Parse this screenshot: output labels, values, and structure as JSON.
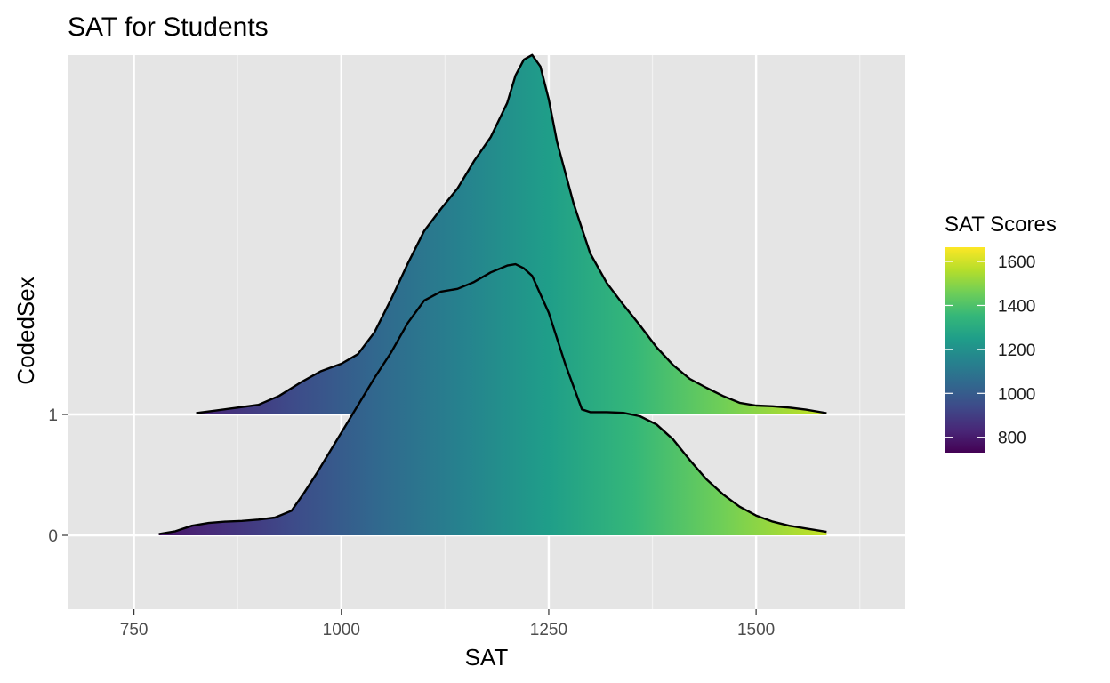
{
  "chart_data": {
    "type": "area",
    "subtype": "ridgeline density",
    "title": "SAT for Students",
    "xlabel": "SAT",
    "ylabel": "CodedSex",
    "xlim": [
      670,
      1680
    ],
    "x_ticks": [
      750,
      1000,
      1250,
      1500
    ],
    "y_categories": [
      "0",
      "1"
    ],
    "grid": true,
    "fill": "viridis gradient by x value",
    "legend": {
      "title": "SAT Scores",
      "position": "right",
      "range": [
        730,
        1665
      ],
      "ticks": [
        800,
        1000,
        1200,
        1400,
        1600
      ]
    },
    "series": [
      {
        "name": "0",
        "x": [
          780,
          800,
          820,
          840,
          860,
          880,
          900,
          920,
          940,
          955,
          970,
          985,
          1000,
          1020,
          1040,
          1060,
          1080,
          1100,
          1120,
          1140,
          1160,
          1180,
          1200,
          1210,
          1220,
          1230,
          1250,
          1270,
          1290,
          1300,
          1320,
          1340,
          1360,
          1380,
          1400,
          1420,
          1440,
          1460,
          1480,
          1500,
          1520,
          1540,
          1560,
          1585
        ],
        "density": [
          0.02,
          0.06,
          0.14,
          0.18,
          0.2,
          0.21,
          0.23,
          0.26,
          0.36,
          0.62,
          0.9,
          1.2,
          1.5,
          1.9,
          2.3,
          2.67,
          3.1,
          3.43,
          3.56,
          3.6,
          3.7,
          3.84,
          3.94,
          3.96,
          3.9,
          3.79,
          3.25,
          2.5,
          1.84,
          1.8,
          1.8,
          1.79,
          1.74,
          1.62,
          1.4,
          1.1,
          0.82,
          0.6,
          0.42,
          0.29,
          0.2,
          0.14,
          0.1,
          0.05
        ]
      },
      {
        "name": "1",
        "x": [
          825,
          850,
          875,
          900,
          925,
          950,
          975,
          1000,
          1020,
          1040,
          1060,
          1080,
          1100,
          1120,
          1140,
          1160,
          1180,
          1200,
          1210,
          1220,
          1230,
          1240,
          1250,
          1260,
          1280,
          1300,
          1320,
          1340,
          1360,
          1380,
          1400,
          1420,
          1440,
          1460,
          1480,
          1500,
          1520,
          1540,
          1560,
          1585
        ],
        "density": [
          0.02,
          0.06,
          0.1,
          0.14,
          0.27,
          0.46,
          0.63,
          0.74,
          0.88,
          1.2,
          1.68,
          2.2,
          2.68,
          3.0,
          3.3,
          3.7,
          4.05,
          4.55,
          4.95,
          5.18,
          5.25,
          5.08,
          4.6,
          3.98,
          3.08,
          2.35,
          1.92,
          1.6,
          1.3,
          0.98,
          0.72,
          0.52,
          0.39,
          0.27,
          0.17,
          0.13,
          0.12,
          0.1,
          0.07,
          0.02
        ]
      }
    ]
  }
}
